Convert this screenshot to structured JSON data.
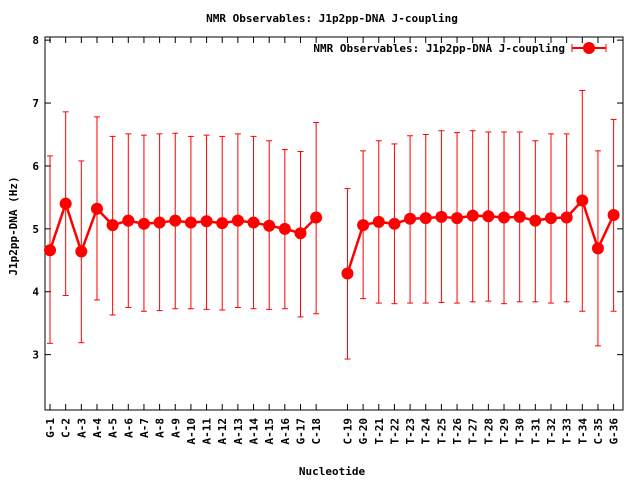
{
  "chart_data": {
    "type": "line",
    "title": "NMR Observables: J1p2pp-DNA J-coupling",
    "xlabel": "Nucleotide",
    "ylabel": "J1p2pp-DNA (Hz)",
    "ylim": [
      2.12,
      8.05
    ],
    "yticks": [
      "3",
      "4",
      "5",
      "6",
      "7",
      "8"
    ],
    "grid": false,
    "legend": "top-right",
    "series_color": "#ff0000",
    "categories": [
      "G-1",
      "C-2",
      "A-3",
      "A-4",
      "A-5",
      "A-6",
      "A-7",
      "A-8",
      "A-9",
      "A-10",
      "A-11",
      "A-12",
      "A-13",
      "A-14",
      "A-15",
      "A-16",
      "G-17",
      "C-18",
      "C-19",
      "G-20",
      "T-21",
      "T-22",
      "T-23",
      "T-24",
      "T-25",
      "T-26",
      "T-27",
      "T-28",
      "T-29",
      "T-30",
      "T-31",
      "T-32",
      "T-33",
      "T-34",
      "C-35",
      "G-36"
    ],
    "series": [
      {
        "name": "NMR Observables: J1p2pp-DNA J-coupling",
        "values": [
          4.66,
          5.4,
          4.64,
          5.32,
          5.06,
          5.13,
          5.08,
          5.1,
          5.13,
          5.1,
          5.12,
          5.09,
          5.13,
          5.1,
          5.05,
          5.0,
          4.93,
          5.18,
          4.29,
          5.06,
          5.11,
          5.08,
          5.16,
          5.17,
          5.19,
          5.17,
          5.21,
          5.2,
          5.18,
          5.19,
          5.13,
          5.17,
          5.18,
          5.45,
          4.69,
          5.22
        ],
        "err_low": [
          3.18,
          3.94,
          3.19,
          3.87,
          3.63,
          3.75,
          3.69,
          3.7,
          3.73,
          3.73,
          3.72,
          3.71,
          3.75,
          3.73,
          3.72,
          3.73,
          3.6,
          3.65,
          2.93,
          3.89,
          3.82,
          3.81,
          3.82,
          3.82,
          3.83,
          3.82,
          3.84,
          3.85,
          3.81,
          3.84,
          3.84,
          3.82,
          3.84,
          3.69,
          3.14,
          3.69
        ],
        "err_high": [
          6.16,
          6.86,
          6.08,
          6.78,
          6.47,
          6.51,
          6.49,
          6.51,
          6.52,
          6.47,
          6.49,
          6.47,
          6.51,
          6.47,
          6.4,
          6.26,
          6.23,
          6.69,
          5.64,
          6.24,
          6.4,
          6.35,
          6.48,
          6.5,
          6.56,
          6.53,
          6.56,
          6.54,
          6.54,
          6.54,
          6.4,
          6.51,
          6.51,
          7.2,
          6.24,
          6.74
        ]
      }
    ]
  }
}
